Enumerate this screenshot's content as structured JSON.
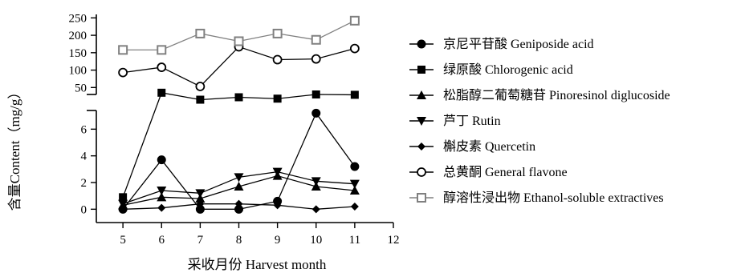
{
  "chart_data": {
    "type": "line",
    "xlabel": "采收月份 Harvest month",
    "ylabel": "含量Content（mg/g）",
    "xlim": [
      4,
      12
    ],
    "x_ticks": [
      "5",
      "6",
      "7",
      "8",
      "9",
      "10",
      "11",
      "12"
    ],
    "y_axis_break": true,
    "ylim_lower": [
      -1,
      7.4
    ],
    "ylim_upper": [
      30,
      260
    ],
    "y_ticks_lower": [
      "0",
      "2",
      "4",
      "6"
    ],
    "y_ticks_upper": [
      "50",
      "100",
      "150",
      "200",
      "250"
    ],
    "legend_position": "right",
    "series": [
      {
        "name": "京尼平苷酸  Geniposide acid",
        "marker": "filled-circle",
        "color": "#000000",
        "x": [
          5,
          6,
          7,
          8,
          9,
          10,
          11
        ],
        "y": [
          0.0,
          3.7,
          0.0,
          0.0,
          0.6,
          7.2,
          3.2
        ]
      },
      {
        "name": "绿原酸  Chlorogenic acid",
        "marker": "filled-square",
        "color": "#000000",
        "x": [
          5,
          6,
          7,
          8,
          9,
          10,
          11
        ],
        "y": [
          0.9,
          35,
          15,
          22,
          18,
          30,
          29
        ]
      },
      {
        "name": "松脂醇二葡萄糖苷  Pinoresinol diglucoside",
        "marker": "filled-triangle-up",
        "color": "#000000",
        "x": [
          5,
          6,
          7,
          8,
          9,
          10,
          11
        ],
        "y": [
          0.3,
          0.9,
          0.8,
          1.7,
          2.5,
          1.7,
          1.4
        ]
      },
      {
        "name": "芦丁  Rutin",
        "marker": "filled-triangle-down",
        "color": "#000000",
        "x": [
          5,
          6,
          7,
          8,
          9,
          10,
          11
        ],
        "y": [
          0.4,
          1.4,
          1.2,
          2.4,
          2.8,
          2.1,
          1.9
        ]
      },
      {
        "name": "槲皮素  Quercetin",
        "marker": "filled-diamond",
        "color": "#000000",
        "x": [
          5,
          6,
          7,
          8,
          9,
          10,
          11
        ],
        "y": [
          0.0,
          0.1,
          0.4,
          0.4,
          0.3,
          0.0,
          0.2
        ]
      },
      {
        "name": "总黄酮  General flavone",
        "marker": "open-circle",
        "color": "#000000",
        "x": [
          5,
          6,
          7,
          8,
          9,
          10,
          11
        ],
        "y": [
          93,
          108,
          53,
          167,
          130,
          132,
          162
        ]
      },
      {
        "name": "醇溶性浸出物  Ethanol-soluble extractives",
        "marker": "open-square",
        "color": "#808080",
        "x": [
          5,
          6,
          7,
          8,
          9,
          10,
          11
        ],
        "y": [
          158,
          158,
          205,
          183,
          205,
          187,
          242
        ]
      }
    ]
  }
}
